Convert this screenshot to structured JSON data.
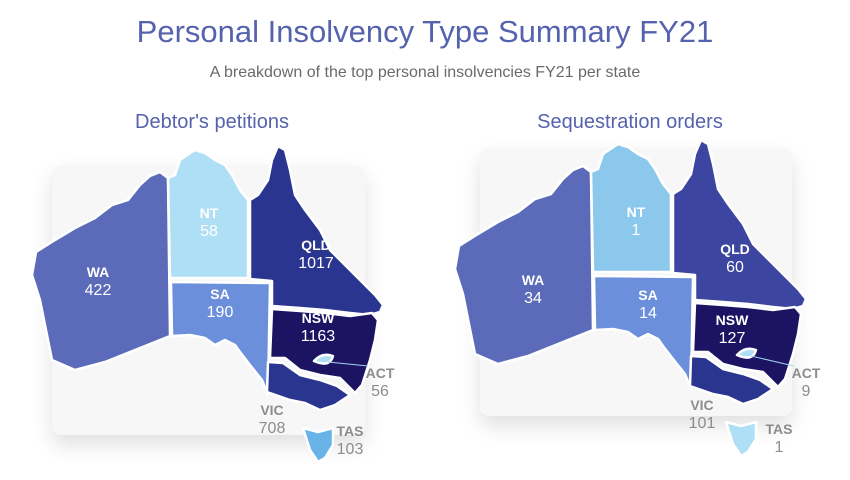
{
  "header": {
    "title": "Personal Insolvency Type Summary FY21",
    "subtitle": "A breakdown of the top personal insolvencies FY21 per state"
  },
  "chart_data": [
    {
      "type": "choropleth",
      "title": "Debtor's petitions",
      "regions": [
        {
          "state": "WA",
          "value": 422,
          "color": "#5b6bb9"
        },
        {
          "state": "NT",
          "value": 58,
          "color": "#aedff5"
        },
        {
          "state": "QLD",
          "value": 1017,
          "color": "#2a3590"
        },
        {
          "state": "SA",
          "value": 190,
          "color": "#6b8fdb"
        },
        {
          "state": "NSW",
          "value": 1163,
          "color": "#1c1463"
        },
        {
          "state": "ACT",
          "value": 56,
          "color": "#aedff5"
        },
        {
          "state": "VIC",
          "value": 708,
          "color": "#2a3590"
        },
        {
          "state": "TAS",
          "value": 103,
          "color": "#68b3e8"
        }
      ]
    },
    {
      "type": "choropleth",
      "title": "Sequestration orders",
      "regions": [
        {
          "state": "WA",
          "value": 34,
          "color": "#5b6bb9"
        },
        {
          "state": "NT",
          "value": 1,
          "color": "#8bc8ec"
        },
        {
          "state": "QLD",
          "value": 60,
          "color": "#3c45a0"
        },
        {
          "state": "SA",
          "value": 14,
          "color": "#6b8fdb"
        },
        {
          "state": "NSW",
          "value": 127,
          "color": "#1c1463"
        },
        {
          "state": "ACT",
          "value": 9,
          "color": "#aedff5"
        },
        {
          "state": "VIC",
          "value": 101,
          "color": "#2a3590"
        },
        {
          "state": "TAS",
          "value": 1,
          "color": "#aedff5"
        }
      ]
    }
  ]
}
